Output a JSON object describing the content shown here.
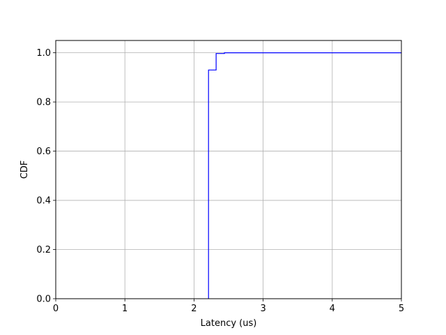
{
  "chart_data": {
    "type": "line",
    "style": "step-cdf",
    "xlabel": "Latency (us)",
    "ylabel": "CDF",
    "xlim": [
      0,
      5
    ],
    "ylim": [
      0,
      1.05
    ],
    "xticks": [
      0,
      1,
      2,
      3,
      4,
      5
    ],
    "yticks": [
      0.0,
      0.2,
      0.4,
      0.6,
      0.8,
      1.0
    ],
    "xtick_labels": [
      "0",
      "1",
      "2",
      "3",
      "4",
      "5"
    ],
    "ytick_labels": [
      "0.0",
      "0.2",
      "0.4",
      "0.6",
      "0.8",
      "1.0"
    ],
    "grid": true,
    "series": [
      {
        "color": "#0000ff",
        "x": [
          2.21,
          2.21,
          2.32,
          2.32,
          2.44,
          2.44,
          5.0
        ],
        "y": [
          0.0,
          0.93,
          0.93,
          0.997,
          0.997,
          1.0,
          1.0
        ]
      }
    ]
  }
}
